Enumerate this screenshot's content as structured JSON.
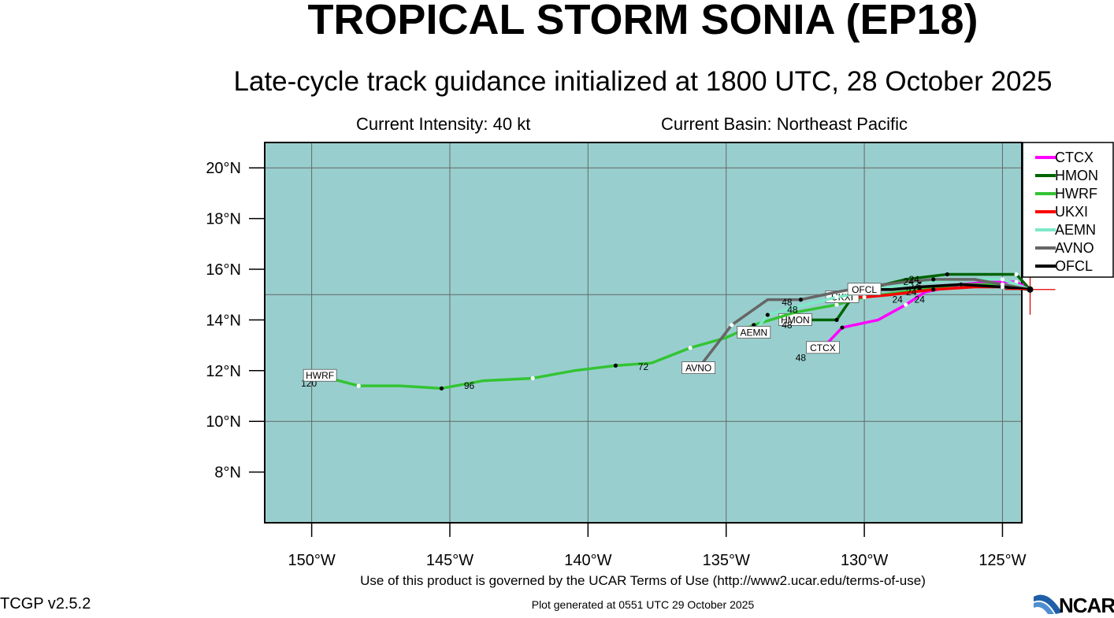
{
  "header": {
    "title": "TROPICAL STORM SONIA (EP18)",
    "subtitle": "Late-cycle track guidance initialized at 1800 UTC, 28 October 2025",
    "intensity": "Current Intensity: 40 kt",
    "basin": "Current Basin: Northeast Pacific"
  },
  "footer": {
    "terms": "Use of this product is governed by the UCAR Terms of Use (http://www2.ucar.edu/terms-of-use)",
    "generated": "Plot generated at 0551 UTC   29 October 2025",
    "version": "TCGP v2.5.2",
    "logo": "NCAR"
  },
  "chart_data": {
    "type": "line",
    "x_axis": {
      "range": [
        -151.7,
        -124.3
      ],
      "ticks": [
        -150,
        -145,
        -140,
        -135,
        -130,
        -125
      ],
      "tick_labels": [
        "150°W",
        "145°W",
        "140°W",
        "135°W",
        "130°W",
        "125°W"
      ]
    },
    "y_axis": {
      "range": [
        6,
        21
      ],
      "ticks": [
        8,
        10,
        12,
        14,
        16,
        18,
        20
      ],
      "tick_labels": [
        "8°N",
        "10°N",
        "12°N",
        "14°N",
        "16°N",
        "18°N",
        "20°N"
      ]
    },
    "grid": true,
    "background_color": "#98cfce",
    "legend_placement": "right",
    "storm_position": {
      "lon": -124,
      "lat": 15.2
    },
    "series": [
      {
        "name": "CTCX",
        "color": "#ff00ff",
        "lon": [
          -124.0,
          -124.5,
          -125.5,
          -126.5,
          -127.8,
          -128.5,
          -129.5,
          -130.8,
          -131.5
        ],
        "lat": [
          15.2,
          15.5,
          15.5,
          15.4,
          15.1,
          14.6,
          14.0,
          13.7,
          12.9
        ],
        "end_label": "CTCX",
        "hour_labels": [
          {
            "text": "24",
            "lon": -128.0,
            "lat": 14.8
          },
          {
            "text": "48",
            "lon": -132.3,
            "lat": 12.5
          }
        ]
      },
      {
        "name": "HMON",
        "color": "#006400",
        "lon": [
          -124.0,
          -124.5,
          -125.5,
          -127.0,
          -128.5,
          -130.0,
          -130.5,
          -131.0,
          -132.5
        ],
        "lat": [
          15.2,
          15.8,
          15.8,
          15.8,
          15.6,
          15.2,
          14.8,
          14.0,
          14.0
        ],
        "end_label": "HMON",
        "hour_labels": [
          {
            "text": "24",
            "lon": -128.2,
            "lat": 15.3
          },
          {
            "text": "48",
            "lon": -132.8,
            "lat": 14.0
          }
        ]
      },
      {
        "name": "HWRF",
        "color": "#33c433",
        "lon": [
          -124.0,
          -125.0,
          -126.5,
          -128.0,
          -130.0,
          -131.0,
          -132.5,
          -134.0,
          -135.0,
          -136.3,
          -137.7,
          -139.0,
          -140.5,
          -142.0,
          -143.8,
          -145.3,
          -146.8,
          -148.3,
          -149.7
        ],
        "lat": [
          15.2,
          15.4,
          15.4,
          15.2,
          14.9,
          14.6,
          14.3,
          13.8,
          13.3,
          12.9,
          12.3,
          12.2,
          12.0,
          11.7,
          11.6,
          11.3,
          11.4,
          11.4,
          11.8
        ],
        "end_label": "HWRF",
        "hour_labels": [
          {
            "text": "72",
            "lon": -138.0,
            "lat": 12.15
          },
          {
            "text": "96",
            "lon": -144.3,
            "lat": 11.4
          },
          {
            "text": "120",
            "lon": -150.1,
            "lat": 11.5
          }
        ]
      },
      {
        "name": "UKXI",
        "color": "#ff0000",
        "lon": [
          -124.0,
          -124.5,
          -126.0,
          -127.5,
          -129.0,
          -130.0,
          -130.8
        ],
        "lat": [
          15.2,
          15.3,
          15.3,
          15.2,
          15.0,
          14.9,
          14.9
        ],
        "end_label": "UKXI",
        "hour_labels": [
          {
            "text": "24",
            "lon": -128.8,
            "lat": 14.8
          }
        ]
      },
      {
        "name": "AEMN",
        "color": "#7ee8c8",
        "lon": [
          -124.0,
          -125.0,
          -126.5,
          -128.0,
          -129.5,
          -131.0,
          -132.5,
          -133.5,
          -134.0
        ],
        "lat": [
          15.2,
          15.6,
          15.6,
          15.5,
          15.2,
          14.9,
          14.5,
          14.2,
          13.5
        ],
        "end_label": "AEMN",
        "hour_labels": [
          {
            "text": "24",
            "lon": -128.3,
            "lat": 15.1
          },
          {
            "text": "48",
            "lon": -132.6,
            "lat": 14.4
          }
        ]
      },
      {
        "name": "AVNO",
        "color": "#666666",
        "lon": [
          -124.0,
          -125.0,
          -126.0,
          -127.5,
          -128.5,
          -130.0,
          -131.0,
          -132.3,
          -133.5,
          -134.8,
          -136.0
        ],
        "lat": [
          15.2,
          15.4,
          15.6,
          15.6,
          15.5,
          15.3,
          15.1,
          14.8,
          14.8,
          13.8,
          12.1
        ],
        "end_label": "AVNO",
        "hour_labels": [
          {
            "text": "24",
            "lon": -128.2,
            "lat": 15.6
          },
          {
            "text": "48",
            "lon": -132.8,
            "lat": 14.7
          }
        ]
      },
      {
        "name": "OFCL",
        "color": "#000000",
        "lon": [
          -124.0,
          -125.0,
          -126.5,
          -128.0,
          -129.0,
          -130.0
        ],
        "lat": [
          15.2,
          15.3,
          15.4,
          15.3,
          15.2,
          15.2
        ],
        "end_label": "OFCL",
        "hour_labels": [
          {
            "text": "24",
            "lon": -128.4,
            "lat": 15.5
          },
          {
            "text": "48",
            "lon": -132.8,
            "lat": 13.8
          }
        ]
      }
    ]
  }
}
